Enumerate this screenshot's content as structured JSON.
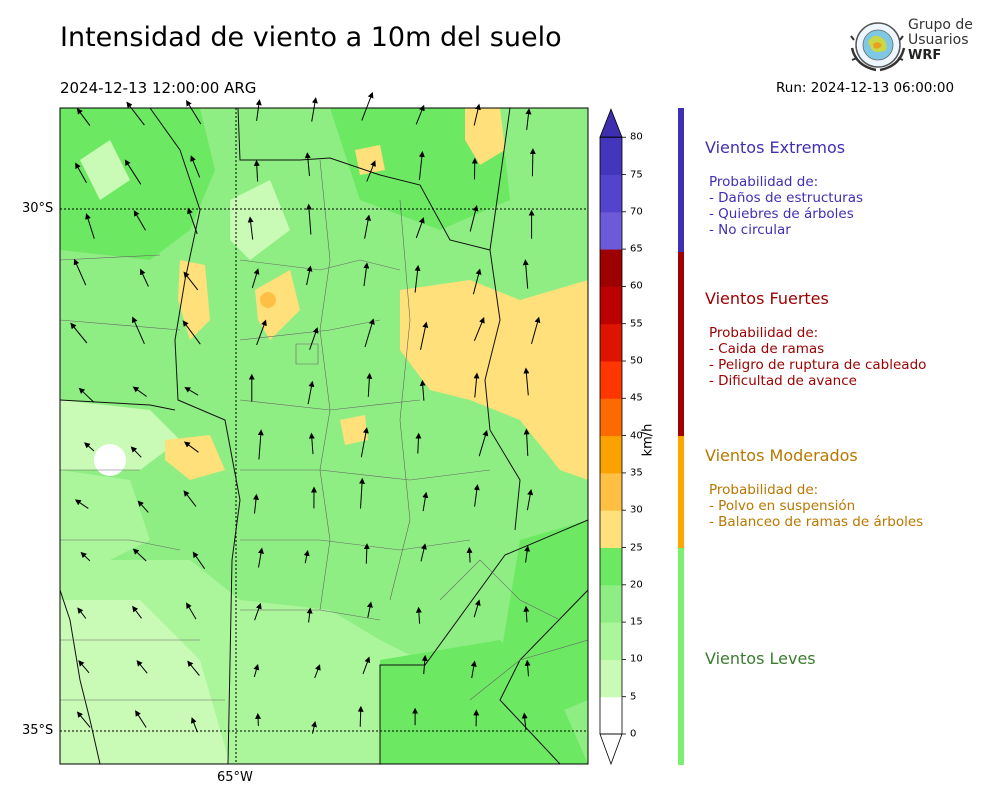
{
  "header": {
    "title": "Intensidad de viento a 10m del suelo",
    "valid_time": "2024-12-13 12:00:00 ARG",
    "run": "Run: 2024-12-13 06:00:00"
  },
  "logo": {
    "line1": "Grupo de",
    "line2": "Usuarios",
    "line3": "WRF"
  },
  "axes": {
    "lat_labels": [
      "30°S",
      "35°S"
    ],
    "lon_labels": [
      "65°W"
    ]
  },
  "colorbar": {
    "unit": "km/h",
    "ticks": [
      "0",
      "5",
      "10",
      "15",
      "20",
      "25",
      "30",
      "35",
      "40",
      "45",
      "50",
      "55",
      "60",
      "65",
      "70",
      "75",
      "80"
    ],
    "colors": [
      "#ffffff",
      "#c9fbb6",
      "#abf59b",
      "#8fee83",
      "#6de863",
      "#ffe07a",
      "#fdc044",
      "#fba200",
      "#fd6a00",
      "#fe3600",
      "#dd1500",
      "#bc0000",
      "#9e0000",
      "#6c5ad8",
      "#5443cc",
      "#4435bd"
    ]
  },
  "categories": [
    {
      "name": "Vientos Extremos",
      "color": "#3f2fb5",
      "lines": [
        "Probabilidad de:",
        "- Daños de estructuras",
        "- Quiebres de árboles",
        "- No circular"
      ]
    },
    {
      "name": "Vientos Fuertes",
      "color": "#9b0000",
      "lines": [
        "Probabilidad de:",
        "- Caida de ramas",
        "- Peligro de ruptura de cableado",
        "- Dificultad de avance"
      ]
    },
    {
      "name": "Vientos Moderados",
      "color": "#b87700",
      "lines": [
        "Probabilidad de:",
        "- Polvo en suspensión",
        "- Balanceo de ramas de árboles"
      ]
    },
    {
      "name": "Vientos Leves",
      "color": "#3a7d2f",
      "lines": []
    }
  ],
  "bar_colors": [
    "#3f2fb5",
    "#a00000",
    "#ffa500",
    "#7af06e"
  ]
}
